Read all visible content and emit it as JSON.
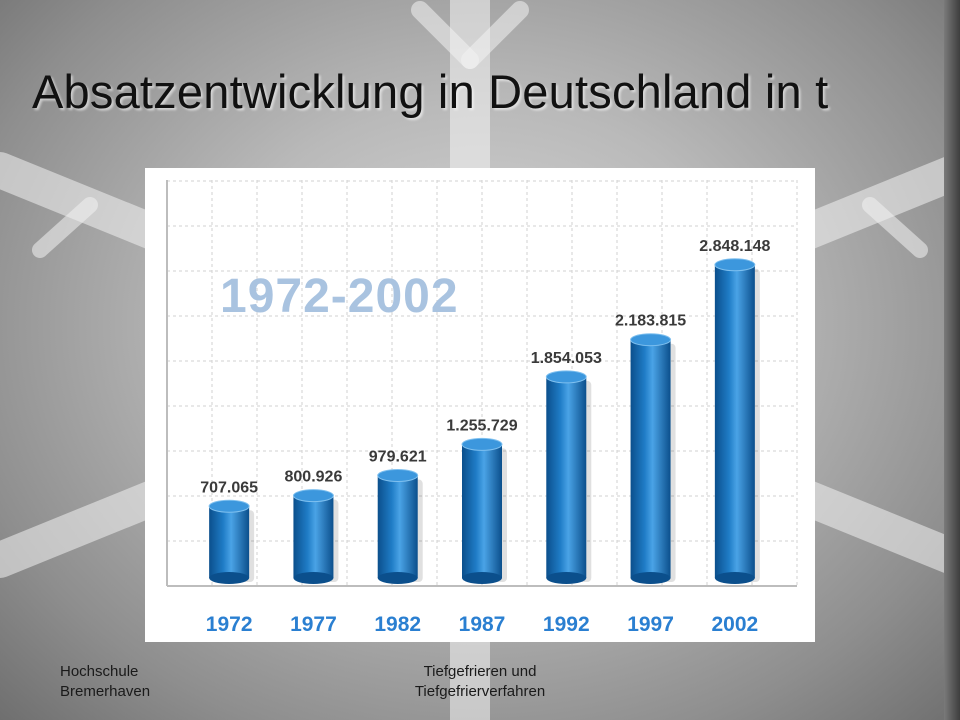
{
  "slide": {
    "title": "Absatzentwicklung in Deutschland in t",
    "footer_left": [
      "Hochschule",
      "Bremerhaven"
    ],
    "footer_center": [
      "Tiefgefrieren und",
      "Tiefgefrierverfahren"
    ]
  },
  "colors": {
    "bar": "#1f7cc6",
    "bar_dark": "#0b4f8c",
    "axis_label": "#2a7fd1",
    "period_text": "#a9c3e0",
    "grid": "#d2d2d2"
  },
  "chart_data": {
    "type": "bar",
    "title": "1972-2002",
    "xlabel": "",
    "ylabel": "",
    "categories": [
      "1972",
      "1977",
      "1982",
      "1987",
      "1992",
      "1997",
      "2002"
    ],
    "values": [
      707065,
      800926,
      979621,
      1255729,
      1854053,
      2183815,
      2848148
    ],
    "value_labels": [
      "707.065",
      "800.926",
      "979.621",
      "1.255.729",
      "1.854.053",
      "2.183.815",
      "2.848.148"
    ],
    "ylim": [
      0,
      3600000
    ],
    "grid": true,
    "legend": "none"
  }
}
